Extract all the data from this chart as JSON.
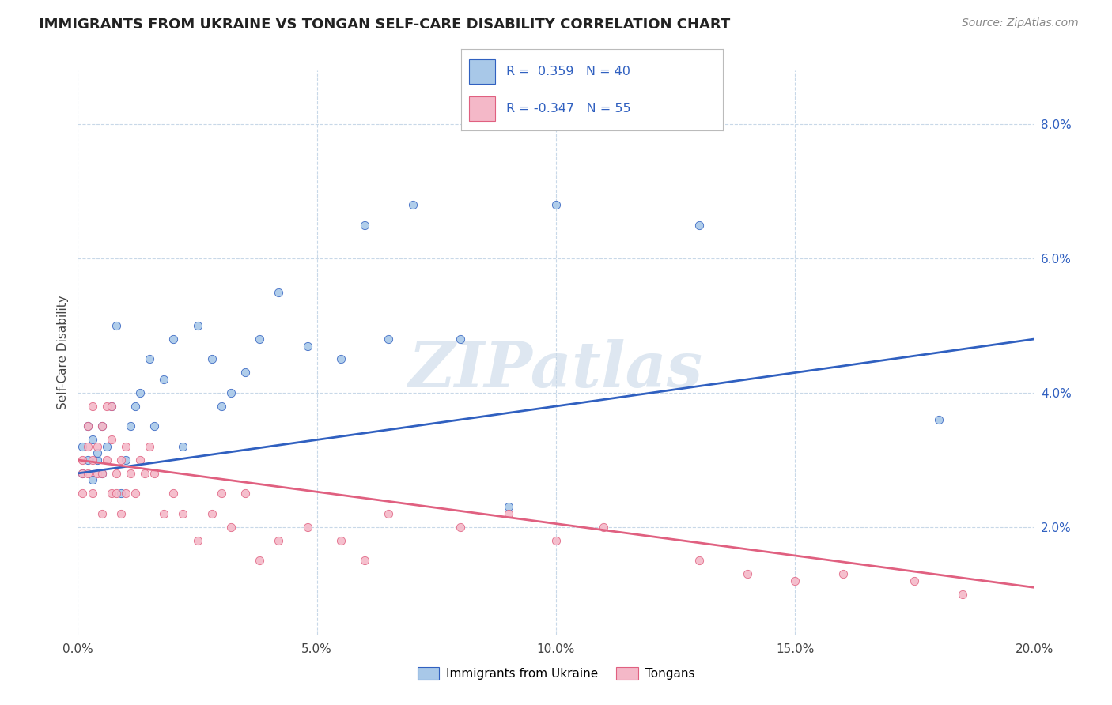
{
  "title": "IMMIGRANTS FROM UKRAINE VS TONGAN SELF-CARE DISABILITY CORRELATION CHART",
  "source_text": "Source: ZipAtlas.com",
  "ylabel": "Self-Care Disability",
  "xlim": [
    0.0,
    0.2
  ],
  "ylim": [
    0.004,
    0.088
  ],
  "xticks": [
    0.0,
    0.05,
    0.1,
    0.15,
    0.2
  ],
  "xtick_labels": [
    "0.0%",
    "5.0%",
    "10.0%",
    "15.0%",
    "20.0%"
  ],
  "yticks": [
    0.02,
    0.04,
    0.06,
    0.08
  ],
  "ytick_labels": [
    "2.0%",
    "4.0%",
    "6.0%",
    "8.0%"
  ],
  "blue_color": "#a8c8e8",
  "pink_color": "#f4b8c8",
  "blue_line_color": "#3060c0",
  "pink_line_color": "#e06080",
  "blue_R": 0.359,
  "blue_N": 40,
  "pink_R": -0.347,
  "pink_N": 55,
  "legend_blue_label": "Immigrants from Ukraine",
  "legend_pink_label": "Tongans",
  "watermark": "ZIPatlas",
  "grid_color": "#c8d8e8",
  "background_color": "#ffffff",
  "blue_intercept": 0.028,
  "blue_slope": 0.1,
  "pink_intercept": 0.03,
  "pink_slope": -0.095,
  "blue_points_x": [
    0.001,
    0.001,
    0.002,
    0.002,
    0.003,
    0.003,
    0.004,
    0.004,
    0.005,
    0.005,
    0.006,
    0.007,
    0.008,
    0.009,
    0.01,
    0.011,
    0.012,
    0.013,
    0.015,
    0.016,
    0.018,
    0.02,
    0.022,
    0.025,
    0.028,
    0.03,
    0.032,
    0.035,
    0.038,
    0.042,
    0.048,
    0.055,
    0.06,
    0.065,
    0.07,
    0.08,
    0.09,
    0.1,
    0.13,
    0.18
  ],
  "blue_points_y": [
    0.028,
    0.032,
    0.03,
    0.035,
    0.027,
    0.033,
    0.03,
    0.031,
    0.028,
    0.035,
    0.032,
    0.038,
    0.05,
    0.025,
    0.03,
    0.035,
    0.038,
    0.04,
    0.045,
    0.035,
    0.042,
    0.048,
    0.032,
    0.05,
    0.045,
    0.038,
    0.04,
    0.043,
    0.048,
    0.055,
    0.047,
    0.045,
    0.065,
    0.048,
    0.068,
    0.048,
    0.023,
    0.068,
    0.065,
    0.036
  ],
  "pink_points_x": [
    0.001,
    0.001,
    0.001,
    0.002,
    0.002,
    0.002,
    0.003,
    0.003,
    0.003,
    0.004,
    0.004,
    0.005,
    0.005,
    0.005,
    0.006,
    0.006,
    0.007,
    0.007,
    0.007,
    0.008,
    0.008,
    0.009,
    0.009,
    0.01,
    0.01,
    0.011,
    0.012,
    0.013,
    0.014,
    0.015,
    0.016,
    0.018,
    0.02,
    0.022,
    0.025,
    0.028,
    0.03,
    0.032,
    0.035,
    0.038,
    0.042,
    0.048,
    0.055,
    0.06,
    0.065,
    0.08,
    0.09,
    0.1,
    0.11,
    0.13,
    0.14,
    0.15,
    0.16,
    0.175,
    0.185
  ],
  "pink_points_y": [
    0.03,
    0.028,
    0.025,
    0.032,
    0.028,
    0.035,
    0.038,
    0.03,
    0.025,
    0.032,
    0.028,
    0.035,
    0.028,
    0.022,
    0.038,
    0.03,
    0.033,
    0.038,
    0.025,
    0.028,
    0.025,
    0.03,
    0.022,
    0.032,
    0.025,
    0.028,
    0.025,
    0.03,
    0.028,
    0.032,
    0.028,
    0.022,
    0.025,
    0.022,
    0.018,
    0.022,
    0.025,
    0.02,
    0.025,
    0.015,
    0.018,
    0.02,
    0.018,
    0.015,
    0.022,
    0.02,
    0.022,
    0.018,
    0.02,
    0.015,
    0.013,
    0.012,
    0.013,
    0.012,
    0.01
  ]
}
